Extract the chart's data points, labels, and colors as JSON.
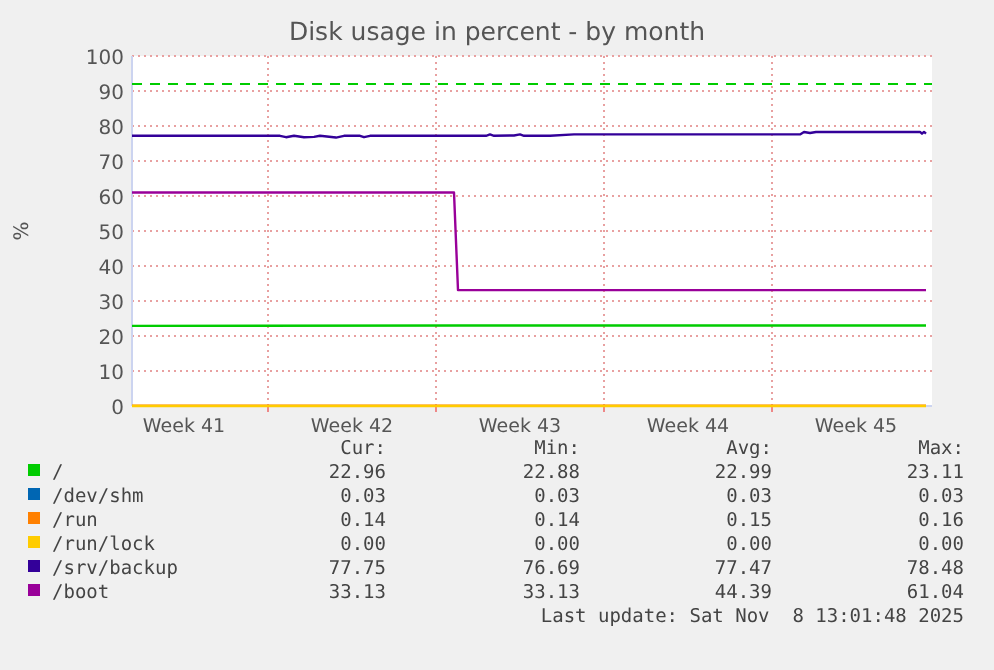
{
  "chart_data": {
    "type": "line",
    "title": "Disk usage in percent - by month",
    "ylabel": "%",
    "xlim": [
      "2025-10-06T08:00",
      "2025-11-08T16:00"
    ],
    "xticks": [
      {
        "value": "2025-10-08T12:00",
        "label": "Week 41"
      },
      {
        "value": "2025-10-15T12:00",
        "label": "Week 42"
      },
      {
        "value": "2025-10-22T12:00",
        "label": "Week 43"
      },
      {
        "value": "2025-10-29T12:00",
        "label": "Week 44"
      },
      {
        "value": "2025-11-05T12:00",
        "label": "Week 45"
      },
      {
        "value": "2025-10-12",
        "label": null
      },
      {
        "value": "2025-10-19",
        "label": null
      },
      {
        "value": "2025-10-26",
        "label": null
      },
      {
        "value": "2025-11-02",
        "label": null
      }
    ],
    "ylim": [
      0,
      100
    ],
    "yticks": [
      0,
      10,
      20,
      30,
      40,
      50,
      60,
      70,
      80,
      90,
      100
    ],
    "grid": true,
    "legend": "bottom",
    "line_style": "solid",
    "marker": "none",
    "ref_lines": [
      {
        "axis": "y",
        "value": 92,
        "color": "#00cc00",
        "line_style": "dashed"
      }
    ],
    "series": [
      {
        "name": "/",
        "color": "#00cc00",
        "x": [
          "2025-10-06T08:00",
          "2025-10-20T00:00",
          "2025-11-08T10:00"
        ],
        "values": [
          22.9,
          23.0,
          23.0
        ]
      },
      {
        "name": "/dev/shm",
        "color": "#0066b3"
      },
      {
        "name": "/run",
        "color": "#ff8000",
        "x": [
          "2025-10-06T08:00",
          "2025-11-08T10:00"
        ],
        "values": [
          0.1,
          0.1
        ]
      },
      {
        "name": "/run/lock",
        "color": "#ffcc00",
        "x": [
          "2025-10-06T08:00",
          "2025-11-08T10:00"
        ],
        "values": [
          0.0,
          0.0
        ]
      },
      {
        "name": "/srv/backup",
        "color": "#330099",
        "x": [
          "2025-10-06T08:00",
          "2025-10-12T12:00",
          "2025-10-12T18:00",
          "2025-10-13T02:00",
          "2025-10-13T12:00",
          "2025-10-13T22:00",
          "2025-10-14T04:00",
          "2025-10-14T20:00",
          "2025-10-15T04:00",
          "2025-10-15T20:00",
          "2025-10-16T00:00",
          "2025-10-16T06:00",
          "2025-10-21T02:00",
          "2025-10-21T06:00",
          "2025-10-21T10:00",
          "2025-10-22T06:00",
          "2025-10-22T12:00",
          "2025-10-22T16:00",
          "2025-10-23T18:00",
          "2025-10-24T18:00",
          "2025-11-03T04:00",
          "2025-11-03T08:00",
          "2025-11-03T14:00",
          "2025-11-03T20:00",
          "2025-11-08T04:00",
          "2025-11-08T06:00",
          "2025-11-08T08:00",
          "2025-11-08T10:00"
        ],
        "values": [
          77.2,
          77.2,
          76.8,
          77.2,
          76.8,
          76.9,
          77.2,
          76.7,
          77.2,
          77.2,
          76.8,
          77.2,
          77.2,
          77.6,
          77.2,
          77.3,
          77.6,
          77.2,
          77.2,
          77.6,
          77.6,
          78.3,
          78.0,
          78.3,
          78.3,
          77.8,
          78.3,
          77.8
        ]
      },
      {
        "name": "/boot",
        "color": "#990099",
        "x": [
          "2025-10-06T08:00",
          "2025-10-19T18:00",
          "2025-10-19T22:00",
          "2025-11-08T10:00"
        ],
        "values": [
          61.0,
          61.0,
          33.1,
          33.1
        ]
      }
    ],
    "annotations": [
      "Cur:",
      "Min:",
      "Avg:",
      "Max:",
      "22.96",
      "22.88",
      "22.99",
      "23.11",
      "0.03",
      "0.03",
      "0.03",
      "0.03",
      "0.14",
      "0.14",
      "0.15",
      "0.16",
      "0.00",
      "0.00",
      "0.00",
      "0.00",
      "77.75",
      "76.69",
      "77.47",
      "78.48",
      "33.13",
      "33.13",
      "44.39",
      "61.04",
      "Last update: Sat Nov  8 13:01:48 2025"
    ]
  }
}
